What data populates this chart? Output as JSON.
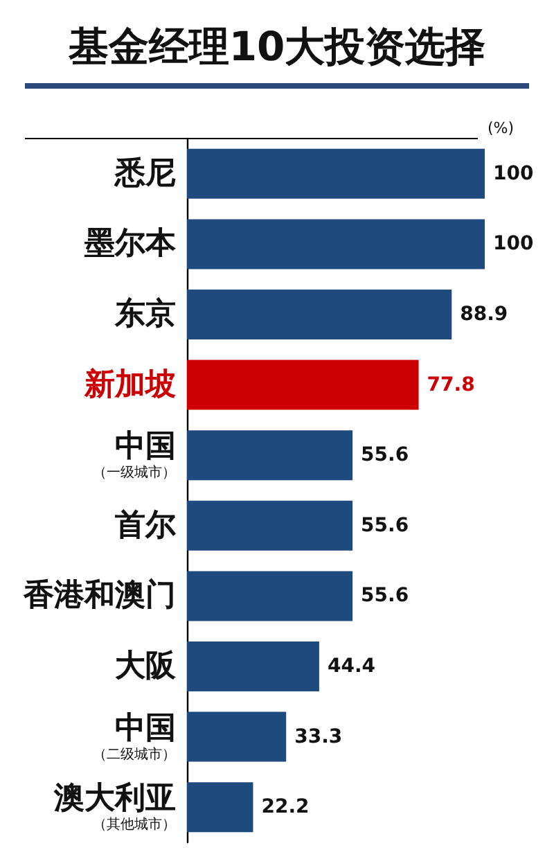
{
  "chart_data": {
    "type": "bar",
    "orientation": "horizontal",
    "title": "基金经理10大投资选择",
    "xlabel": "(%)",
    "categories": [
      "悉尼",
      "墨尔本",
      "东京",
      "新加坡",
      "中国（一级城市）",
      "首尔",
      "香港和澳门",
      "大阪",
      "中国（二级城市）",
      "澳大利亚（其他城市）"
    ],
    "values": [
      100,
      100,
      88.9,
      77.8,
      55.6,
      55.6,
      55.6,
      44.4,
      33.3,
      22.2
    ],
    "colors": [
      "#1f4a7e",
      "#1f4a7e",
      "#1f4a7e",
      "#cc0000",
      "#1f4a7e",
      "#1f4a7e",
      "#1f4a7e",
      "#1f4a7e",
      "#1f4a7e",
      "#1f4a7e"
    ],
    "xlim": [
      0,
      100
    ],
    "data_labels": true,
    "tick_labels": false,
    "grid": false
  }
}
